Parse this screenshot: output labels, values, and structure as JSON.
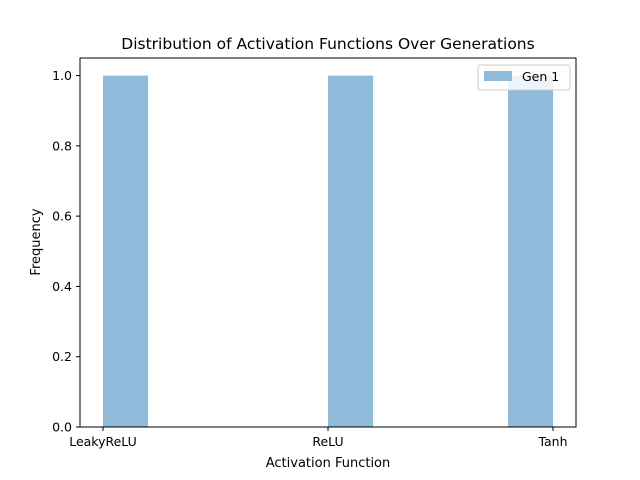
{
  "chart_data": {
    "type": "bar",
    "title": "Distribution of Activation Functions Over Generations",
    "xlabel": "Activation Function",
    "ylabel": "Frequency",
    "categories": [
      "LeakyReLU",
      "ReLU",
      "Tanh"
    ],
    "series": [
      {
        "name": "Gen 1",
        "values": [
          1,
          1,
          1
        ],
        "color": "#8fbad9"
      }
    ],
    "ylim": [
      0,
      1.05
    ],
    "yticks": [
      "0.0",
      "0.2",
      "0.4",
      "0.6",
      "0.8",
      "1.0"
    ],
    "grid": false,
    "legend_position": "top-right"
  }
}
